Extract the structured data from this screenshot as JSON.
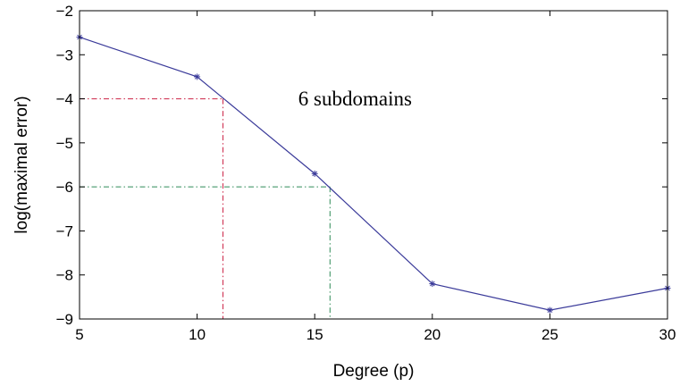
{
  "chart_data": {
    "type": "line",
    "xlabel": "Degree (p)",
    "ylabel": "log(maximal error)",
    "xlim": [
      5,
      30
    ],
    "ylim": [
      -9,
      -2
    ],
    "xticks": [
      5,
      10,
      15,
      20,
      25,
      30
    ],
    "yticks": [
      -9,
      -8,
      -7,
      -6,
      -5,
      -4,
      -3,
      -2
    ],
    "xtick_labels": [
      "5",
      "10",
      "15",
      "20",
      "25",
      "30"
    ],
    "ytick_labels": [
      "−9",
      "−8",
      "−7",
      "−6",
      "−5",
      "−4",
      "−3",
      "−2"
    ],
    "grid": false,
    "series": [
      {
        "x": [
          5,
          10,
          15,
          20,
          25,
          30
        ],
        "y": [
          -2.6,
          -3.5,
          -5.7,
          -8.2,
          -8.8,
          -8.3
        ],
        "color": "#3b3b9a",
        "marker": "asterisk"
      }
    ],
    "reference_lines": [
      {
        "x": 11.1,
        "y": -4.0,
        "color": "#cc2244",
        "style": "dash-dot"
      },
      {
        "x": 15.65,
        "y": -6.0,
        "color": "#2e8b57",
        "style": "dash-dot"
      }
    ],
    "annotations": [
      {
        "text": "6 subdomains",
        "x": 14.3,
        "y": -4.15
      }
    ]
  }
}
